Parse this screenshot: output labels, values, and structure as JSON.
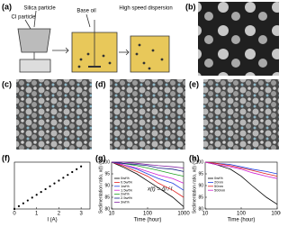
{
  "panel_labels": [
    "(a)",
    "(b)",
    "(c)",
    "(d)",
    "(e)",
    "(f)",
    "(g)",
    "(h)"
  ],
  "schematic": {
    "silica": "Silica particle",
    "ci": "CI particle",
    "oil": "Base oil",
    "dispersion": "High speed dispersion"
  },
  "chart_data": [
    {
      "type": "scatter",
      "xlabel": "I (A)",
      "x": [
        0,
        0.2,
        0.4,
        0.6,
        0.8,
        1.0,
        1.2,
        1.4,
        1.6,
        1.8,
        2.0,
        2.2,
        2.4,
        2.6,
        2.8,
        3.0
      ],
      "values": [
        0,
        0.2,
        0.4,
        0.6,
        0.8,
        1.0,
        1.2,
        1.4,
        1.6,
        1.8,
        2.0,
        2.2,
        2.4,
        2.6,
        2.8,
        3.0
      ],
      "color": "#000000",
      "xlim": [
        0,
        3.4
      ],
      "xticks": [
        0,
        1,
        2,
        3
      ],
      "ylim": [
        0,
        3.3
      ]
    },
    {
      "type": "line",
      "xlabel": "Time (hour)",
      "ylabel": "Sedimentation ratio, x(t) (%)",
      "annotation": "x(t) = Δl / l",
      "log_x": true,
      "x": [
        10,
        20,
        50,
        100,
        200,
        500,
        1000
      ],
      "xlim": [
        10,
        1000
      ],
      "xticks": [
        10,
        100,
        1000
      ],
      "ylim": [
        80,
        100
      ],
      "yticks": [
        80,
        85,
        90,
        95,
        100
      ],
      "series": [
        {
          "name": "0wt%",
          "color": "#000000",
          "values": [
            100,
            98,
            95,
            92,
            89,
            85,
            81
          ]
        },
        {
          "name": "0.5wt%",
          "color": "#e02020",
          "values": [
            100,
            98.5,
            96,
            94,
            91,
            88,
            85
          ]
        },
        {
          "name": "1wt%",
          "color": "#2040e0",
          "values": [
            100,
            99,
            97,
            95,
            93,
            91,
            88
          ]
        },
        {
          "name": "1.5wt%",
          "color": "#d020d0",
          "values": [
            100,
            99,
            97.5,
            96,
            94.5,
            93,
            91
          ]
        },
        {
          "name": "2wt%",
          "color": "#20a020",
          "values": [
            100,
            99.5,
            98.5,
            97.5,
            96.5,
            95,
            94
          ]
        },
        {
          "name": "2.5wt%",
          "color": "#102080",
          "values": [
            100,
            99.5,
            99,
            98.5,
            97.5,
            97,
            96
          ]
        },
        {
          "name": "3wt%",
          "color": "#8020a0",
          "values": [
            100,
            100,
            99.5,
            99,
            98.5,
            98,
            97.5
          ]
        }
      ]
    },
    {
      "type": "line",
      "xlabel": "Time (hour)",
      "ylabel": "Sedimentation ratio, x(t) (%)",
      "log_x": true,
      "x": [
        10,
        20,
        50,
        100,
        200,
        500,
        1000
      ],
      "xlim": [
        10,
        1000
      ],
      "xticks": [
        10,
        100,
        1000
      ],
      "ylim": [
        80,
        100
      ],
      "yticks": [
        80,
        85,
        90,
        95,
        100
      ],
      "series": [
        {
          "name": "0wt%",
          "color": "#000000",
          "values": [
            100,
            99,
            97,
            94,
            90,
            85,
            82
          ]
        },
        {
          "name": "20nm",
          "color": "#2040e0",
          "values": [
            100,
            99.5,
            99,
            98,
            97,
            96,
            95
          ]
        },
        {
          "name": "50nm",
          "color": "#e02020",
          "values": [
            100,
            99.5,
            98.5,
            97.5,
            96.5,
            95,
            94
          ]
        },
        {
          "name": "500nm",
          "color": "#d020d0",
          "values": [
            100,
            99,
            98,
            97,
            95.5,
            94,
            93
          ]
        }
      ]
    }
  ]
}
